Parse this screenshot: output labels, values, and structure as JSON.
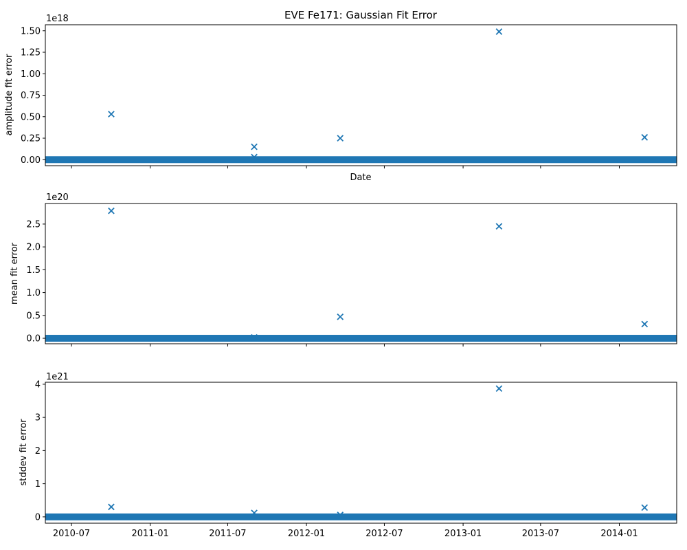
{
  "chart_data": [
    {
      "type": "scatter",
      "title": "EVE Fe171: Gaussian Fit Error",
      "xlabel": "Date",
      "ylabel": "amplitude fit error",
      "offset_text": "1e18",
      "y_multiplier": 1e+18,
      "ylim": [
        -0.07,
        1.57
      ],
      "yticks": [
        0.0,
        0.25,
        0.5,
        0.75,
        1.0,
        1.25,
        1.5
      ],
      "ytick_labels": [
        "0.00",
        "0.25",
        "0.50",
        "0.75",
        "1.00",
        "1.25",
        "1.50"
      ],
      "x_tick_labels_visible": false,
      "marker": "x",
      "color": "#1f77b4",
      "baseline": {
        "x_start": "2010-05-01",
        "x_end": "2014-05-15",
        "y": 0.0
      },
      "points": [
        {
          "x": "2010-10-02",
          "y": 0.53
        },
        {
          "x": "2011-09-01",
          "y": 0.15
        },
        {
          "x": "2011-09-01",
          "y": 0.03
        },
        {
          "x": "2012-03-20",
          "y": 0.25
        },
        {
          "x": "2013-03-26",
          "y": 1.49
        },
        {
          "x": "2014-03-01",
          "y": 0.26
        }
      ]
    },
    {
      "type": "scatter",
      "title": "",
      "xlabel": "",
      "ylabel": "mean fit error",
      "offset_text": "1e20",
      "y_multiplier": 1e+20,
      "ylim": [
        -0.12,
        2.95
      ],
      "yticks": [
        0.0,
        0.5,
        1.0,
        1.5,
        2.0,
        2.5
      ],
      "ytick_labels": [
        "0.0",
        "0.5",
        "1.0",
        "1.5",
        "2.0",
        "2.5"
      ],
      "x_tick_labels_visible": false,
      "marker": "x",
      "color": "#1f77b4",
      "baseline": {
        "x_start": "2010-05-01",
        "x_end": "2014-05-15",
        "y": 0.0
      },
      "points": [
        {
          "x": "2010-10-02",
          "y": 2.79
        },
        {
          "x": "2011-09-01",
          "y": 0.02
        },
        {
          "x": "2012-03-20",
          "y": 0.47
        },
        {
          "x": "2013-03-26",
          "y": 2.45
        },
        {
          "x": "2014-03-01",
          "y": 0.31
        }
      ]
    },
    {
      "type": "scatter",
      "title": "",
      "xlabel": "",
      "ylabel": "stddev fit error",
      "offset_text": "1e21",
      "y_multiplier": 1e+21,
      "ylim": [
        -0.19,
        4.06
      ],
      "yticks": [
        0,
        1,
        2,
        3,
        4
      ],
      "ytick_labels": [
        "0",
        "1",
        "2",
        "3",
        "4"
      ],
      "x_tick_labels_visible": true,
      "marker": "x",
      "color": "#1f77b4",
      "baseline": {
        "x_start": "2010-05-01",
        "x_end": "2014-05-15",
        "y": 0.0
      },
      "points": [
        {
          "x": "2010-10-02",
          "y": 0.3
        },
        {
          "x": "2011-09-01",
          "y": 0.12
        },
        {
          "x": "2012-03-20",
          "y": 0.06
        },
        {
          "x": "2013-03-26",
          "y": 3.87
        },
        {
          "x": "2014-03-01",
          "y": 0.28
        }
      ]
    }
  ],
  "x_axis": {
    "xlim": [
      "2010-05-01",
      "2014-05-15"
    ],
    "ticks": [
      "2010-07-01",
      "2011-01-01",
      "2011-07-01",
      "2012-01-01",
      "2012-07-01",
      "2013-01-01",
      "2013-07-01",
      "2014-01-01"
    ],
    "tick_labels": [
      "2010-07",
      "2011-01",
      "2011-07",
      "2012-01",
      "2012-07",
      "2013-01",
      "2013-07",
      "2014-01"
    ]
  }
}
